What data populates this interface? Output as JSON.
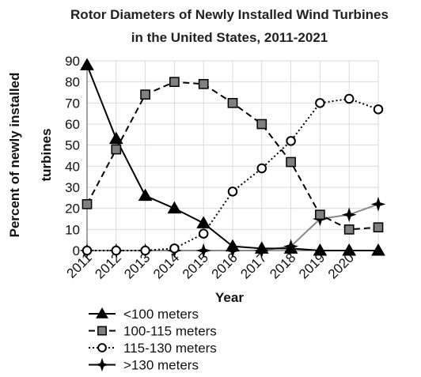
{
  "chart_data": {
    "type": "line",
    "title_line1": "Rotor Diameters of Newly Installed Wind Turbines",
    "title_line2": "in the United States, 2011-2021",
    "xlabel": "Year",
    "ylabel_line1": "Percent of newly installed",
    "ylabel_line2": "turbines",
    "x": [
      "2011",
      "2012",
      "2013",
      "2014",
      "2015",
      "2016",
      "2017",
      "2018",
      "2019",
      "2020",
      "2021"
    ],
    "x_tick_labels": [
      "2011",
      "2012",
      "2013",
      "2014",
      "2015",
      "2016",
      "2017",
      "2018",
      "2019",
      "2020"
    ],
    "yticks": [
      0,
      10,
      20,
      30,
      40,
      50,
      60,
      70,
      80,
      90
    ],
    "ylim": [
      0,
      90
    ],
    "grid": true,
    "legend_position": "bottom-left",
    "series": [
      {
        "name": "<100 meters",
        "marker": "triangle",
        "line": "solid",
        "color": "#000000",
        "values": [
          88,
          53,
          26,
          20,
          13,
          2,
          1,
          1,
          0,
          0,
          0
        ]
      },
      {
        "name": "100-115 meters",
        "marker": "square",
        "line": "dashed",
        "color": "#000000",
        "values": [
          22,
          48,
          74,
          80,
          79,
          70,
          60,
          42,
          17,
          10,
          11
        ]
      },
      {
        "name": "115-130 meters",
        "marker": "circle",
        "line": "dotted",
        "color": "#000000",
        "values": [
          0,
          0,
          0,
          1,
          8,
          28,
          39,
          52,
          70,
          72,
          67
        ]
      },
      {
        "name": ">130 meters",
        "marker": "star",
        "line": "solid",
        "color": "#888888",
        "values": [
          0,
          0,
          0,
          0,
          0,
          0,
          0,
          2,
          15,
          17,
          22
        ]
      }
    ]
  }
}
